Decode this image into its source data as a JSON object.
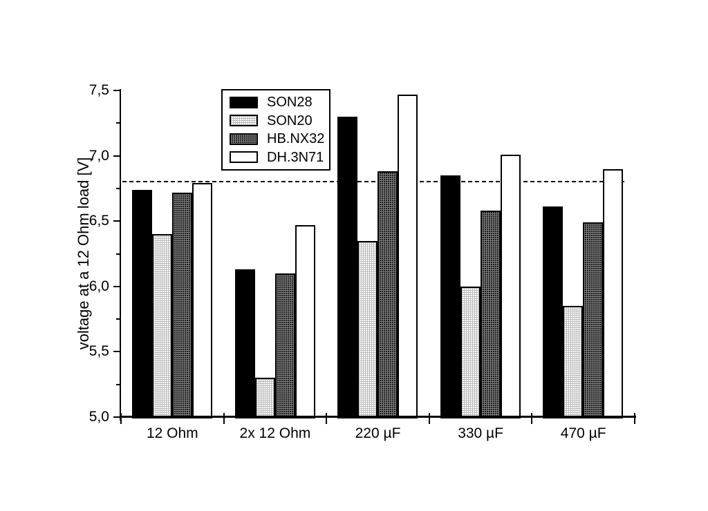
{
  "chart_data": {
    "type": "bar",
    "title": "",
    "categories": [
      "12 Ohm",
      "2x 12 Ohm",
      "220 µF",
      "330 µF",
      "470 µF"
    ],
    "series": [
      {
        "name": "SON28",
        "pattern": "solid-black",
        "values": [
          6.74,
          6.13,
          7.3,
          6.85,
          6.61
        ]
      },
      {
        "name": "SON20",
        "pattern": "light-grid",
        "values": [
          6.4,
          5.3,
          6.35,
          6.0,
          5.85
        ]
      },
      {
        "name": "HB.NX32",
        "pattern": "dark-grid",
        "values": [
          6.72,
          6.1,
          6.88,
          6.58,
          6.49
        ]
      },
      {
        "name": "DH.3N71",
        "pattern": "white",
        "values": [
          6.79,
          6.47,
          7.47,
          7.01,
          6.9
        ]
      }
    ],
    "xlabel": "",
    "ylabel": "voltage at a 12 Ohm load [V]",
    "ylim": [
      5.0,
      7.5
    ],
    "ytick_step": 0.5,
    "ytick_minor_step": 0.25,
    "decimal_separator": ",",
    "reference_line": {
      "value": 6.8,
      "style": "dashed",
      "color": "#000000"
    },
    "legend_position": "top-left-inside",
    "grid": false,
    "colors": {
      "foreground": "#000000",
      "background": "#ffffff",
      "light_pattern": "#d9d9d9",
      "dark_pattern": "#3f3f3f"
    }
  }
}
